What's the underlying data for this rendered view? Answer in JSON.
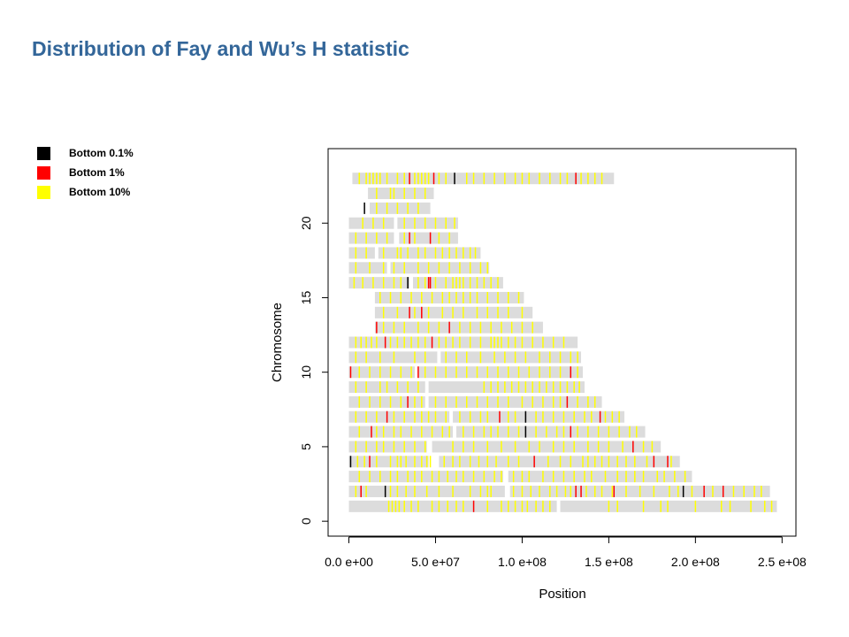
{
  "title": "Distribution of Fay and Wu’s H statistic",
  "legend": [
    {
      "label": "Bottom 0.1%",
      "color": "#000000"
    },
    {
      "label": "Bottom 1%",
      "color": "#ff0000"
    },
    {
      "label": "Bottom 10%",
      "color": "#ffff00"
    }
  ],
  "chart_data": {
    "type": "scatter",
    "xlabel": "Position",
    "ylabel": "Chromosome",
    "xlim": [
      -12000000,
      258000000
    ],
    "ylim": [
      -1,
      25
    ],
    "x_ticks": [
      0,
      50000000,
      100000000,
      150000000,
      200000000,
      250000000
    ],
    "x_tick_labels": [
      "0.0 e+00",
      "5.0 e+07",
      "1.0 e+08",
      "1.5 e+08",
      "2.0 e+08",
      "2.5 e+08"
    ],
    "y_ticks": [
      0,
      5,
      10,
      15,
      20
    ],
    "y_tick_labels": [
      "0",
      "5",
      "10",
      "15",
      "20"
    ],
    "track_color": "#dcdcdc",
    "chromosomes": [
      {
        "y": 1,
        "segments": [
          [
            0,
            120000000
          ],
          [
            122000000,
            247000000
          ]
        ],
        "bottom_0_1": [],
        "bottom_1": [
          72000000
        ],
        "bottom_10": [
          23000000,
          25000000,
          27000000,
          29000000,
          32000000,
          36000000,
          40000000,
          48000000,
          52000000,
          57000000,
          62000000,
          66000000,
          80000000,
          88000000,
          92000000,
          96000000,
          100000000,
          103000000,
          108000000,
          112000000,
          116000000,
          150000000,
          155000000,
          170000000,
          180000000,
          184000000,
          200000000,
          215000000,
          220000000,
          232000000,
          240000000,
          244000000
        ]
      },
      {
        "y": 2,
        "segments": [
          [
            0,
            90000000
          ],
          [
            93000000,
            243000000
          ]
        ],
        "bottom_0_1": [
          21000000,
          193000000
        ],
        "bottom_1": [
          7000000,
          131000000,
          134000000,
          153000000,
          205000000,
          216000000
        ],
        "bottom_10": [
          4000000,
          10000000,
          24000000,
          28000000,
          33000000,
          38000000,
          45000000,
          52000000,
          60000000,
          70000000,
          76000000,
          80000000,
          82000000,
          95000000,
          100000000,
          105000000,
          110000000,
          116000000,
          120000000,
          125000000,
          128000000,
          137000000,
          142000000,
          146000000,
          152000000,
          160000000,
          168000000,
          176000000,
          185000000,
          190000000,
          198000000,
          210000000,
          222000000,
          228000000,
          234000000,
          238000000
        ]
      },
      {
        "y": 3,
        "segments": [
          [
            0,
            89000000
          ],
          [
            92000000,
            198000000
          ]
        ],
        "bottom_0_1": [],
        "bottom_1": [],
        "bottom_10": [
          6000000,
          12000000,
          18000000,
          24000000,
          28000000,
          34000000,
          38000000,
          42000000,
          48000000,
          52000000,
          57000000,
          62000000,
          66000000,
          72000000,
          78000000,
          84000000,
          88000000,
          95000000,
          100000000,
          104000000,
          112000000,
          118000000,
          124000000,
          130000000,
          136000000,
          140000000,
          148000000,
          155000000,
          160000000,
          165000000,
          170000000,
          178000000,
          182000000,
          188000000,
          194000000
        ]
      },
      {
        "y": 4,
        "segments": [
          [
            0,
            46000000
          ],
          [
            52000000,
            191000000
          ]
        ],
        "bottom_0_1": [
          1000000
        ],
        "bottom_1": [
          12000000,
          107000000,
          176000000,
          184000000
        ],
        "bottom_10": [
          5000000,
          9000000,
          16000000,
          24000000,
          28000000,
          30000000,
          33000000,
          38000000,
          42000000,
          45000000,
          47000000,
          55000000,
          60000000,
          64000000,
          70000000,
          75000000,
          80000000,
          85000000,
          92000000,
          98000000,
          115000000,
          122000000,
          128000000,
          135000000,
          138000000,
          142000000,
          146000000,
          150000000,
          155000000,
          160000000,
          165000000,
          172000000,
          186000000
        ]
      },
      {
        "y": 5,
        "segments": [
          [
            0,
            45000000
          ],
          [
            48000000,
            180000000
          ]
        ],
        "bottom_0_1": [],
        "bottom_1": [
          164000000
        ],
        "bottom_10": [
          4000000,
          10000000,
          16000000,
          20000000,
          26000000,
          32000000,
          38000000,
          44000000,
          60000000,
          66000000,
          72000000,
          80000000,
          88000000,
          96000000,
          104000000,
          110000000,
          118000000,
          124000000,
          130000000,
          138000000,
          144000000,
          150000000,
          158000000,
          170000000,
          175000000
        ]
      },
      {
        "y": 6,
        "segments": [
          [
            0,
            60000000
          ],
          [
            62000000,
            171000000
          ]
        ],
        "bottom_0_1": [
          102000000
        ],
        "bottom_1": [
          13000000,
          128000000
        ],
        "bottom_10": [
          6000000,
          16000000,
          20000000,
          26000000,
          30000000,
          36000000,
          42000000,
          48000000,
          54000000,
          58000000,
          66000000,
          72000000,
          78000000,
          82000000,
          86000000,
          92000000,
          98000000,
          108000000,
          114000000,
          120000000,
          124000000,
          132000000,
          138000000,
          144000000,
          150000000,
          156000000,
          162000000,
          166000000
        ]
      },
      {
        "y": 7,
        "segments": [
          [
            0,
            58000000
          ],
          [
            60000000,
            159000000
          ]
        ],
        "bottom_0_1": [
          102000000
        ],
        "bottom_1": [
          22000000,
          87000000,
          145000000
        ],
        "bottom_10": [
          4000000,
          10000000,
          16000000,
          26000000,
          32000000,
          38000000,
          42000000,
          46000000,
          50000000,
          56000000,
          64000000,
          70000000,
          76000000,
          80000000,
          92000000,
          96000000,
          108000000,
          112000000,
          118000000,
          124000000,
          130000000,
          136000000,
          140000000,
          148000000,
          152000000,
          156000000
        ]
      },
      {
        "y": 8,
        "segments": [
          [
            0,
            44000000
          ],
          [
            46000000,
            146000000
          ]
        ],
        "bottom_0_1": [],
        "bottom_1": [
          34000000,
          126000000
        ],
        "bottom_10": [
          6000000,
          12000000,
          18000000,
          24000000,
          30000000,
          38000000,
          42000000,
          50000000,
          56000000,
          62000000,
          68000000,
          74000000,
          80000000,
          86000000,
          92000000,
          100000000,
          106000000,
          112000000,
          118000000,
          122000000,
          132000000,
          138000000,
          142000000
        ]
      },
      {
        "y": 9,
        "segments": [
          [
            0,
            44000000
          ],
          [
            46000000,
            136000000
          ]
        ],
        "bottom_0_1": [],
        "bottom_1": [],
        "bottom_10": [
          4000000,
          10000000,
          18000000,
          22000000,
          28000000,
          34000000,
          40000000,
          78000000,
          82000000,
          86000000,
          90000000,
          94000000,
          98000000,
          102000000,
          106000000,
          110000000,
          114000000,
          118000000,
          122000000,
          126000000,
          130000000,
          133000000
        ]
      },
      {
        "y": 10,
        "segments": [
          [
            0,
            38000000
          ],
          [
            40000000,
            135000000
          ]
        ],
        "bottom_0_1": [],
        "bottom_1": [
          1000000,
          40000000,
          128000000
        ],
        "bottom_10": [
          6000000,
          12000000,
          18000000,
          24000000,
          30000000,
          36000000,
          44000000,
          50000000,
          56000000,
          62000000,
          68000000,
          74000000,
          80000000,
          86000000,
          92000000,
          98000000,
          104000000,
          110000000,
          116000000,
          122000000,
          132000000
        ]
      },
      {
        "y": 11,
        "segments": [
          [
            0,
            51000000
          ],
          [
            53000000,
            134000000
          ]
        ],
        "bottom_0_1": [],
        "bottom_1": [],
        "bottom_10": [
          4000000,
          10000000,
          18000000,
          26000000,
          38000000,
          44000000,
          56000000,
          62000000,
          68000000,
          76000000,
          84000000,
          90000000,
          96000000,
          102000000,
          110000000,
          116000000,
          122000000,
          128000000,
          132000000
        ]
      },
      {
        "y": 12,
        "segments": [
          [
            0,
            132000000
          ]
        ],
        "bottom_0_1": [],
        "bottom_1": [
          21000000,
          48000000
        ],
        "bottom_10": [
          4000000,
          7000000,
          10000000,
          13000000,
          16000000,
          24000000,
          28000000,
          32000000,
          36000000,
          40000000,
          44000000,
          52000000,
          56000000,
          60000000,
          64000000,
          70000000,
          76000000,
          82000000,
          84000000,
          86000000,
          88000000,
          92000000,
          96000000,
          100000000,
          106000000,
          112000000,
          118000000,
          124000000
        ]
      },
      {
        "y": 13,
        "segments": [
          [
            15000000,
            112000000
          ]
        ],
        "bottom_0_1": [],
        "bottom_1": [
          16000000,
          58000000
        ],
        "bottom_10": [
          20000000,
          26000000,
          32000000,
          40000000,
          46000000,
          52000000,
          64000000,
          70000000,
          76000000,
          82000000,
          88000000,
          94000000,
          100000000,
          106000000
        ]
      },
      {
        "y": 14,
        "segments": [
          [
            15000000,
            106000000
          ]
        ],
        "bottom_0_1": [],
        "bottom_1": [
          35000000,
          42000000
        ],
        "bottom_10": [
          20000000,
          28000000,
          38000000,
          46000000,
          54000000,
          60000000,
          66000000,
          74000000,
          80000000,
          86000000,
          92000000,
          100000000
        ]
      },
      {
        "y": 15,
        "segments": [
          [
            15000000,
            101000000
          ]
        ],
        "bottom_0_1": [],
        "bottom_1": [],
        "bottom_10": [
          18000000,
          24000000,
          30000000,
          36000000,
          42000000,
          48000000,
          54000000,
          58000000,
          62000000,
          66000000,
          70000000,
          74000000,
          80000000,
          86000000,
          92000000,
          98000000
        ]
      },
      {
        "y": 16,
        "segments": [
          [
            0,
            35000000
          ],
          [
            37000000,
            89000000
          ]
        ],
        "bottom_0_1": [
          34000000
        ],
        "bottom_1": [
          46000000,
          47000000
        ],
        "bottom_10": [
          3000000,
          8000000,
          14000000,
          20000000,
          26000000,
          30000000,
          40000000,
          44000000,
          50000000,
          56000000,
          60000000,
          62000000,
          64000000,
          66000000,
          70000000,
          74000000,
          78000000,
          82000000,
          86000000
        ]
      },
      {
        "y": 17,
        "segments": [
          [
            0,
            22000000
          ],
          [
            24000000,
            81000000
          ]
        ],
        "bottom_0_1": [],
        "bottom_1": [],
        "bottom_10": [
          4000000,
          12000000,
          20000000,
          26000000,
          32000000,
          40000000,
          46000000,
          52000000,
          58000000,
          64000000,
          70000000,
          76000000,
          80000000
        ]
      },
      {
        "y": 18,
        "segments": [
          [
            0,
            15000000
          ],
          [
            17000000,
            76000000
          ]
        ],
        "bottom_0_1": [],
        "bottom_1": [],
        "bottom_10": [
          4000000,
          10000000,
          20000000,
          28000000,
          30000000,
          34000000,
          40000000,
          44000000,
          50000000,
          54000000,
          58000000,
          62000000,
          66000000,
          70000000,
          73000000
        ]
      },
      {
        "y": 19,
        "segments": [
          [
            0,
            26000000
          ],
          [
            29000000,
            63000000
          ]
        ],
        "bottom_0_1": [],
        "bottom_1": [
          35000000,
          47000000
        ],
        "bottom_10": [
          4000000,
          10000000,
          16000000,
          22000000,
          32000000,
          38000000,
          52000000,
          58000000
        ]
      },
      {
        "y": 20,
        "segments": [
          [
            0,
            26000000
          ],
          [
            28000000,
            63000000
          ]
        ],
        "bottom_0_1": [],
        "bottom_1": [],
        "bottom_10": [
          8000000,
          14000000,
          20000000,
          32000000,
          38000000,
          44000000,
          50000000,
          56000000,
          61000000
        ]
      },
      {
        "y": 21,
        "segments": [
          [
            12000000,
            47000000
          ]
        ],
        "bottom_0_1": [
          9000000
        ],
        "bottom_1": [],
        "bottom_10": [
          16000000,
          22000000,
          28000000,
          34000000,
          40000000
        ]
      },
      {
        "y": 22,
        "segments": [
          [
            11000000,
            49000000
          ]
        ],
        "bottom_0_1": [],
        "bottom_1": [],
        "bottom_10": [
          16000000,
          24000000,
          26000000,
          32000000,
          38000000,
          44000000
        ]
      },
      {
        "y": 23,
        "segments": [
          [
            2000000,
            153000000
          ]
        ],
        "bottom_0_1": [
          61000000
        ],
        "bottom_1": [
          35000000,
          49000000,
          131000000
        ],
        "bottom_10": [
          6000000,
          10000000,
          12000000,
          14000000,
          16000000,
          18000000,
          22000000,
          28000000,
          32000000,
          38000000,
          40000000,
          42000000,
          44000000,
          46000000,
          52000000,
          56000000,
          68000000,
          72000000,
          78000000,
          84000000,
          90000000,
          96000000,
          100000000,
          104000000,
          110000000,
          116000000,
          122000000,
          126000000,
          134000000,
          138000000,
          142000000,
          146000000
        ]
      }
    ]
  }
}
